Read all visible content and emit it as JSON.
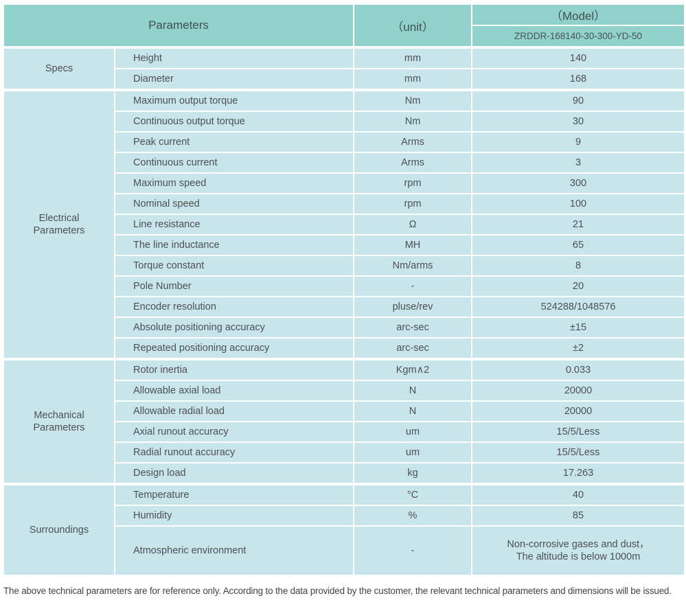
{
  "header": {
    "parameters_label": "Parameters",
    "unit_label": "（unit）",
    "model_label": "（Model）",
    "model_value": "ZRDDR-168140-30-300-YD-50"
  },
  "sections": [
    {
      "group": "Specs",
      "rows": [
        {
          "param": "Height",
          "unit": "mm",
          "value": "140"
        },
        {
          "param": "Diameter",
          "unit": "mm",
          "value": "168"
        }
      ]
    },
    {
      "group": "Electrical\nParameters",
      "rows": [
        {
          "param": "Maximum output torque",
          "unit": "Nm",
          "value": "90"
        },
        {
          "param": "Continuous output torque",
          "unit": "Nm",
          "value": "30"
        },
        {
          "param": "Peak current",
          "unit": "Arms",
          "value": "9"
        },
        {
          "param": "Continuous current",
          "unit": "Arms",
          "value": "3"
        },
        {
          "param": "Maximum speed",
          "unit": "rpm",
          "value": "300"
        },
        {
          "param": "Nominal speed",
          "unit": "rpm",
          "value": "100"
        },
        {
          "param": "Line resistance",
          "unit": "Ω",
          "value": "21"
        },
        {
          "param": "The line inductance",
          "unit": "MH",
          "value": "65"
        },
        {
          "param": "Torque constant",
          "unit": "Nm/arms",
          "value": "8"
        },
        {
          "param": "Pole Number",
          "unit": "-",
          "value": "20"
        },
        {
          "param": "Encoder resolution",
          "unit": "pluse/rev",
          "value": "524288/1048576"
        },
        {
          "param": "Absolute positioning accuracy",
          "unit": "arc-sec",
          "value": "±15"
        },
        {
          "param": "Repeated positioning accuracy",
          "unit": "arc-sec",
          "value": "±2"
        }
      ]
    },
    {
      "group": "Mechanical\nParameters",
      "rows": [
        {
          "param": "Rotor inertia",
          "unit": "Kgm∧2",
          "value": "0.033"
        },
        {
          "param": "Allowable axial load",
          "unit": "N",
          "value": "20000"
        },
        {
          "param": "Allowable radial load",
          "unit": "N",
          "value": "20000"
        },
        {
          "param": "Axial runout accuracy",
          "unit": "um",
          "value": "15/5/Less"
        },
        {
          "param": "Radial runout accuracy",
          "unit": "um",
          "value": "15/5/Less"
        },
        {
          "param": "Design load",
          "unit": "kg",
          "value": "17.263"
        }
      ]
    },
    {
      "group": "Surroundings",
      "rows": [
        {
          "param": "Temperature",
          "unit": "°C",
          "value": "40"
        },
        {
          "param": "Humidity",
          "unit": "%",
          "value": "85"
        },
        {
          "param": "Atmospheric environment",
          "unit": "-",
          "value": "Non-corrosive gases and dust，\nThe altitude is below 1000m"
        }
      ]
    }
  ],
  "footer": {
    "note": "The above technical parameters are for reference only. According to the data provided by the customer, the relevant technical parameters and dimensions will be issued."
  },
  "colors": {
    "header_bg": "#90D1CB",
    "row_bg": "#C9E5EC",
    "border": "#FFFFFF",
    "text": "#4D5052"
  }
}
